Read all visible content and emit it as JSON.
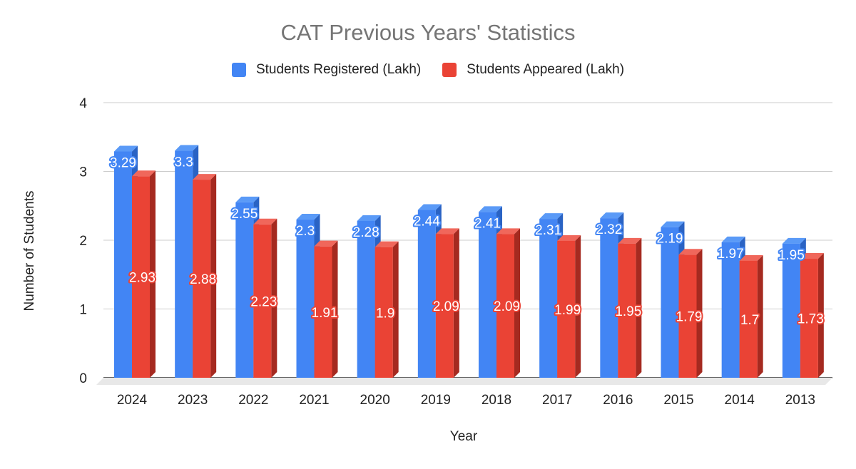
{
  "chart_data": {
    "type": "bar",
    "title": "CAT Previous Years' Statistics",
    "xlabel": "Year",
    "ylabel": "Number of Students",
    "ylim": [
      0,
      4
    ],
    "yticks": [
      "0",
      "1",
      "2",
      "3",
      "4"
    ],
    "grid": true,
    "legend_placement": "top",
    "categories": [
      "2024",
      "2023",
      "2022",
      "2021",
      "2020",
      "2019",
      "2018",
      "2017",
      "2016",
      "2015",
      "2014",
      "2013"
    ],
    "series": [
      {
        "name": "Students Registered (Lakh)",
        "color": "#4285f4",
        "values": [
          3.29,
          3.3,
          2.55,
          2.3,
          2.28,
          2.44,
          2.41,
          2.31,
          2.32,
          2.19,
          1.97,
          1.95
        ],
        "labels": [
          "3.29",
          "3.3",
          "2.55",
          "2.3",
          "2.28",
          "2.44",
          "2.41",
          "2.31",
          "2.32",
          "2.19",
          "1.97",
          "1.95"
        ]
      },
      {
        "name": "Students Appeared (Lakh)",
        "color": "#ea4335",
        "values": [
          2.93,
          2.88,
          2.23,
          1.91,
          1.9,
          2.09,
          2.09,
          1.99,
          1.95,
          1.79,
          1.7,
          1.73
        ],
        "labels": [
          "2.93",
          "2.88",
          "2.23",
          "1.91",
          "1.9",
          "2.09",
          "2.09",
          "1.99",
          "1.95",
          "1.79",
          "1.7",
          "1.73"
        ]
      }
    ]
  }
}
